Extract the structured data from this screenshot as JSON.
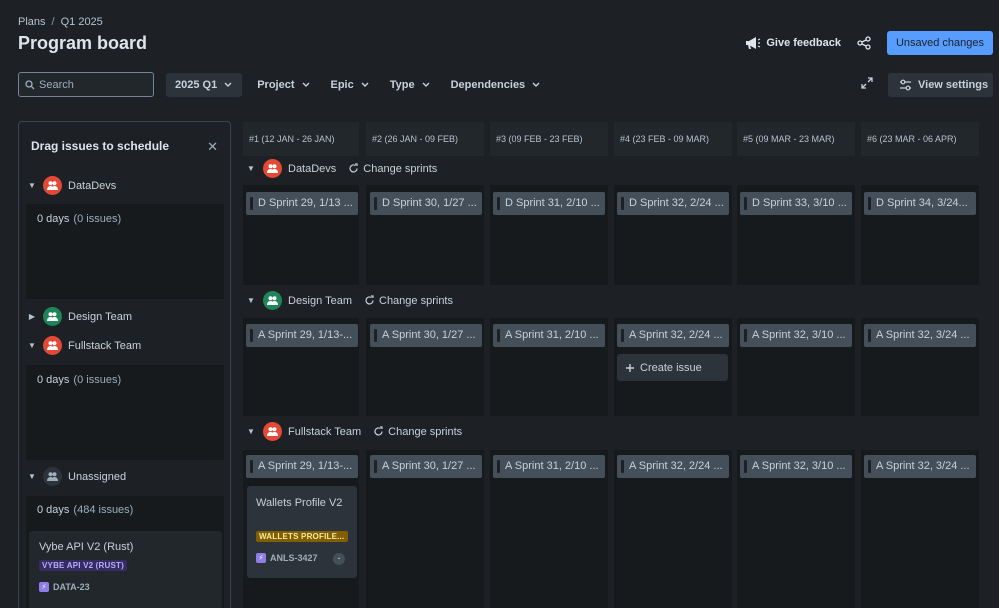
{
  "breadcrumb": {
    "root": "Plans",
    "separator": "/",
    "current": "Q1 2025"
  },
  "page_title": "Program board",
  "actions": {
    "feedback": "Give feedback",
    "unsaved": "Unsaved changes"
  },
  "search": {
    "placeholder": "Search"
  },
  "filters": [
    "2025 Q1",
    "Project",
    "Epic",
    "Type",
    "Dependencies"
  ],
  "view_settings": "View settings",
  "side_panel": {
    "title": "Drag issues to schedule",
    "teams": [
      {
        "name": "DataDevs",
        "days": "0 days",
        "count": "(0 issues)"
      },
      {
        "name": "Design Team"
      },
      {
        "name": "Fullstack Team",
        "days": "0 days",
        "count": "(0 issues)"
      },
      {
        "name": "Unassigned",
        "days": "0 days",
        "count": "(484 issues)"
      }
    ],
    "card": {
      "title": "Vybe API V2 (Rust)",
      "epic": "VYBE API V2 (RUST)",
      "key": "DATA-23"
    }
  },
  "columns": [
    "#1 (12 JAN - 26 JAN)",
    "#2 (26 JAN - 09 FEB)",
    "#3 (09 FEB - 23 FEB)",
    "#4 (23 FEB - 09 MAR)",
    "#5 (09 MAR - 23 MAR)",
    "#6 (23 MAR - 06 APR)"
  ],
  "board_teams": [
    {
      "name": "DataDevs",
      "change_sprints": "Change sprints",
      "sprints": [
        "D Sprint 29, 1/13 ...",
        "D Sprint 30, 1/27 ...",
        "D Sprint 31, 2/10 ...",
        "D Sprint 32, 2/24 ...",
        "D Sprint 33, 3/10 ...",
        "D Sprint 34, 3/24..."
      ]
    },
    {
      "name": "Design Team",
      "change_sprints": "Change sprints",
      "sprints": [
        "A Sprint 29, 1/13-...",
        "A Sprint 30, 1/27 ...",
        "A Sprint 31, 2/10 ...",
        "A Sprint 32, 2/24 ...",
        "A Sprint 32, 3/10 ...",
        "A Sprint 32, 3/24 ..."
      ],
      "create_issue": "Create issue"
    },
    {
      "name": "Fullstack Team",
      "change_sprints": "Change sprints",
      "sprints": [
        "A Sprint 29, 1/13-...",
        "A Sprint 30, 1/27 ...",
        "A Sprint 31, 2/10 ...",
        "A Sprint 32, 2/24 ...",
        "A Sprint 32, 3/10 ...",
        "A Sprint 32, 3/24 ..."
      ],
      "card": {
        "title": "Wallets Profile V2",
        "epic": "WALLETS PROFILE...",
        "key": "ANLS-3427",
        "estimate": "-"
      }
    }
  ],
  "colors": {
    "background": "#1d2125",
    "accent": "#579dff",
    "team_red": "#e34935",
    "team_green": "#1f845a",
    "epic_purple": "#352c63",
    "epic_yellow": "#7f5f01"
  },
  "icons": [
    "search-icon",
    "megaphone-icon",
    "share-icon",
    "chevron-down-icon",
    "expand-icon",
    "settings-sliders-icon",
    "close-icon",
    "team-icon",
    "refresh-icon",
    "plus-icon",
    "epic-lightning-icon"
  ]
}
